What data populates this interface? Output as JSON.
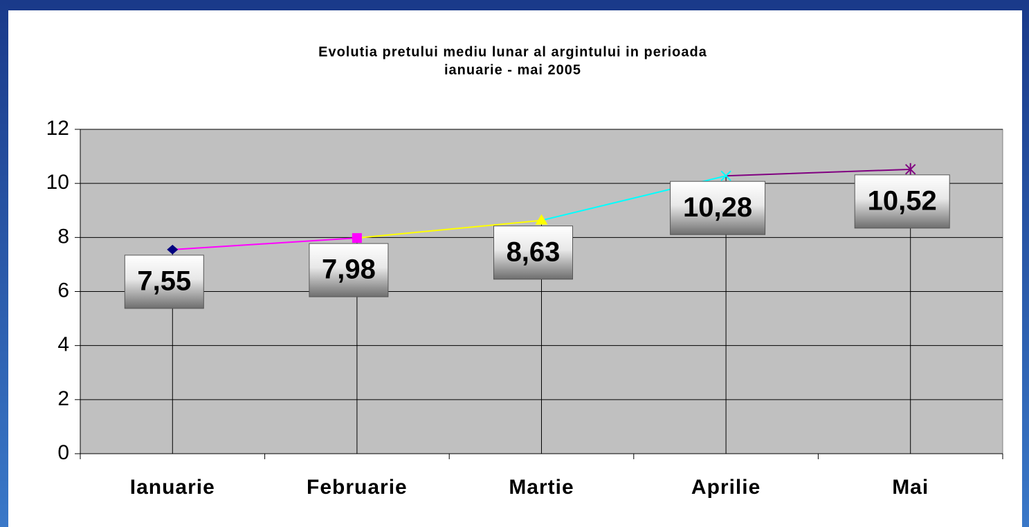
{
  "chart_data": {
    "type": "line",
    "title": "Evolutia pretului mediu lunar al argintului in perioada",
    "subtitle": "ianuarie -  mai  2005",
    "categories": [
      "Ianuarie",
      "Februarie",
      "Martie",
      "Aprilie",
      "Mai"
    ],
    "values": [
      7.55,
      7.98,
      8.63,
      10.28,
      10.52
    ],
    "value_labels": [
      "7,55",
      "7,98",
      "8,63",
      "10,28",
      "10,52"
    ],
    "colors": [
      "#000080",
      "#ff00ff",
      "#ffff00",
      "#00ffff",
      "#800080"
    ],
    "markers": [
      "diamond",
      "square",
      "triangle",
      "x",
      "star"
    ],
    "ylim": [
      0,
      12
    ],
    "yticks": [
      0,
      2,
      4,
      6,
      8,
      10,
      12
    ],
    "grid": true
  }
}
